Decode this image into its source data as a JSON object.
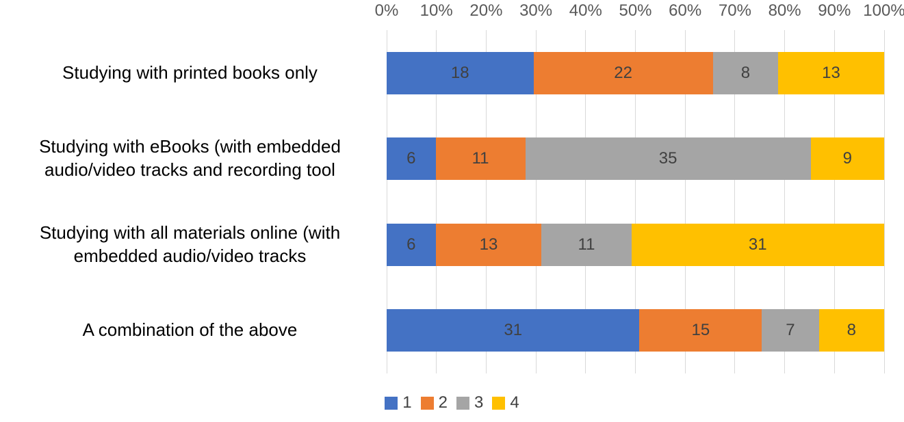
{
  "chart_data": {
    "type": "bar",
    "variant": "100-percent-stacked-horizontal",
    "title": "",
    "xlabel": "",
    "ylabel": "",
    "categories": [
      "Studying with printed books only",
      "Studying with eBooks (with embedded audio/video tracks and recording tool",
      "Studying with all materials online (with embedded audio/video tracks",
      "A combination of the above"
    ],
    "category_display_lines": [
      [
        "Studying with printed books only"
      ],
      [
        "Studying with eBooks (with embedded",
        "audio/video tracks and recording tool"
      ],
      [
        "Studying with all materials online (with",
        "embedded audio/video tracks"
      ],
      [
        "A combination of the above"
      ]
    ],
    "series": [
      {
        "name": "1",
        "color": "#4472C4",
        "values": [
          18,
          6,
          6,
          31
        ]
      },
      {
        "name": "2",
        "color": "#ED7D31",
        "values": [
          22,
          11,
          13,
          15
        ]
      },
      {
        "name": "3",
        "color": "#A5A5A5",
        "values": [
          8,
          35,
          11,
          7
        ]
      },
      {
        "name": "4",
        "color": "#FFC000",
        "values": [
          13,
          9,
          31,
          8
        ]
      }
    ],
    "x_axis": {
      "position": "top",
      "min": 0,
      "max": 100,
      "tick_labels": [
        "0%",
        "10%",
        "20%",
        "30%",
        "40%",
        "50%",
        "60%",
        "70%",
        "80%",
        "90%",
        "100%"
      ]
    },
    "legend": {
      "position": "bottom",
      "entries": [
        "1",
        "2",
        "3",
        "4"
      ]
    },
    "gridlines": true,
    "data_labels": "inside-center",
    "styles": {
      "axis_text_color": "#595959",
      "data_label_color": "#404040",
      "gridline_color": "#d9d9d9",
      "background": "#ffffff"
    }
  }
}
